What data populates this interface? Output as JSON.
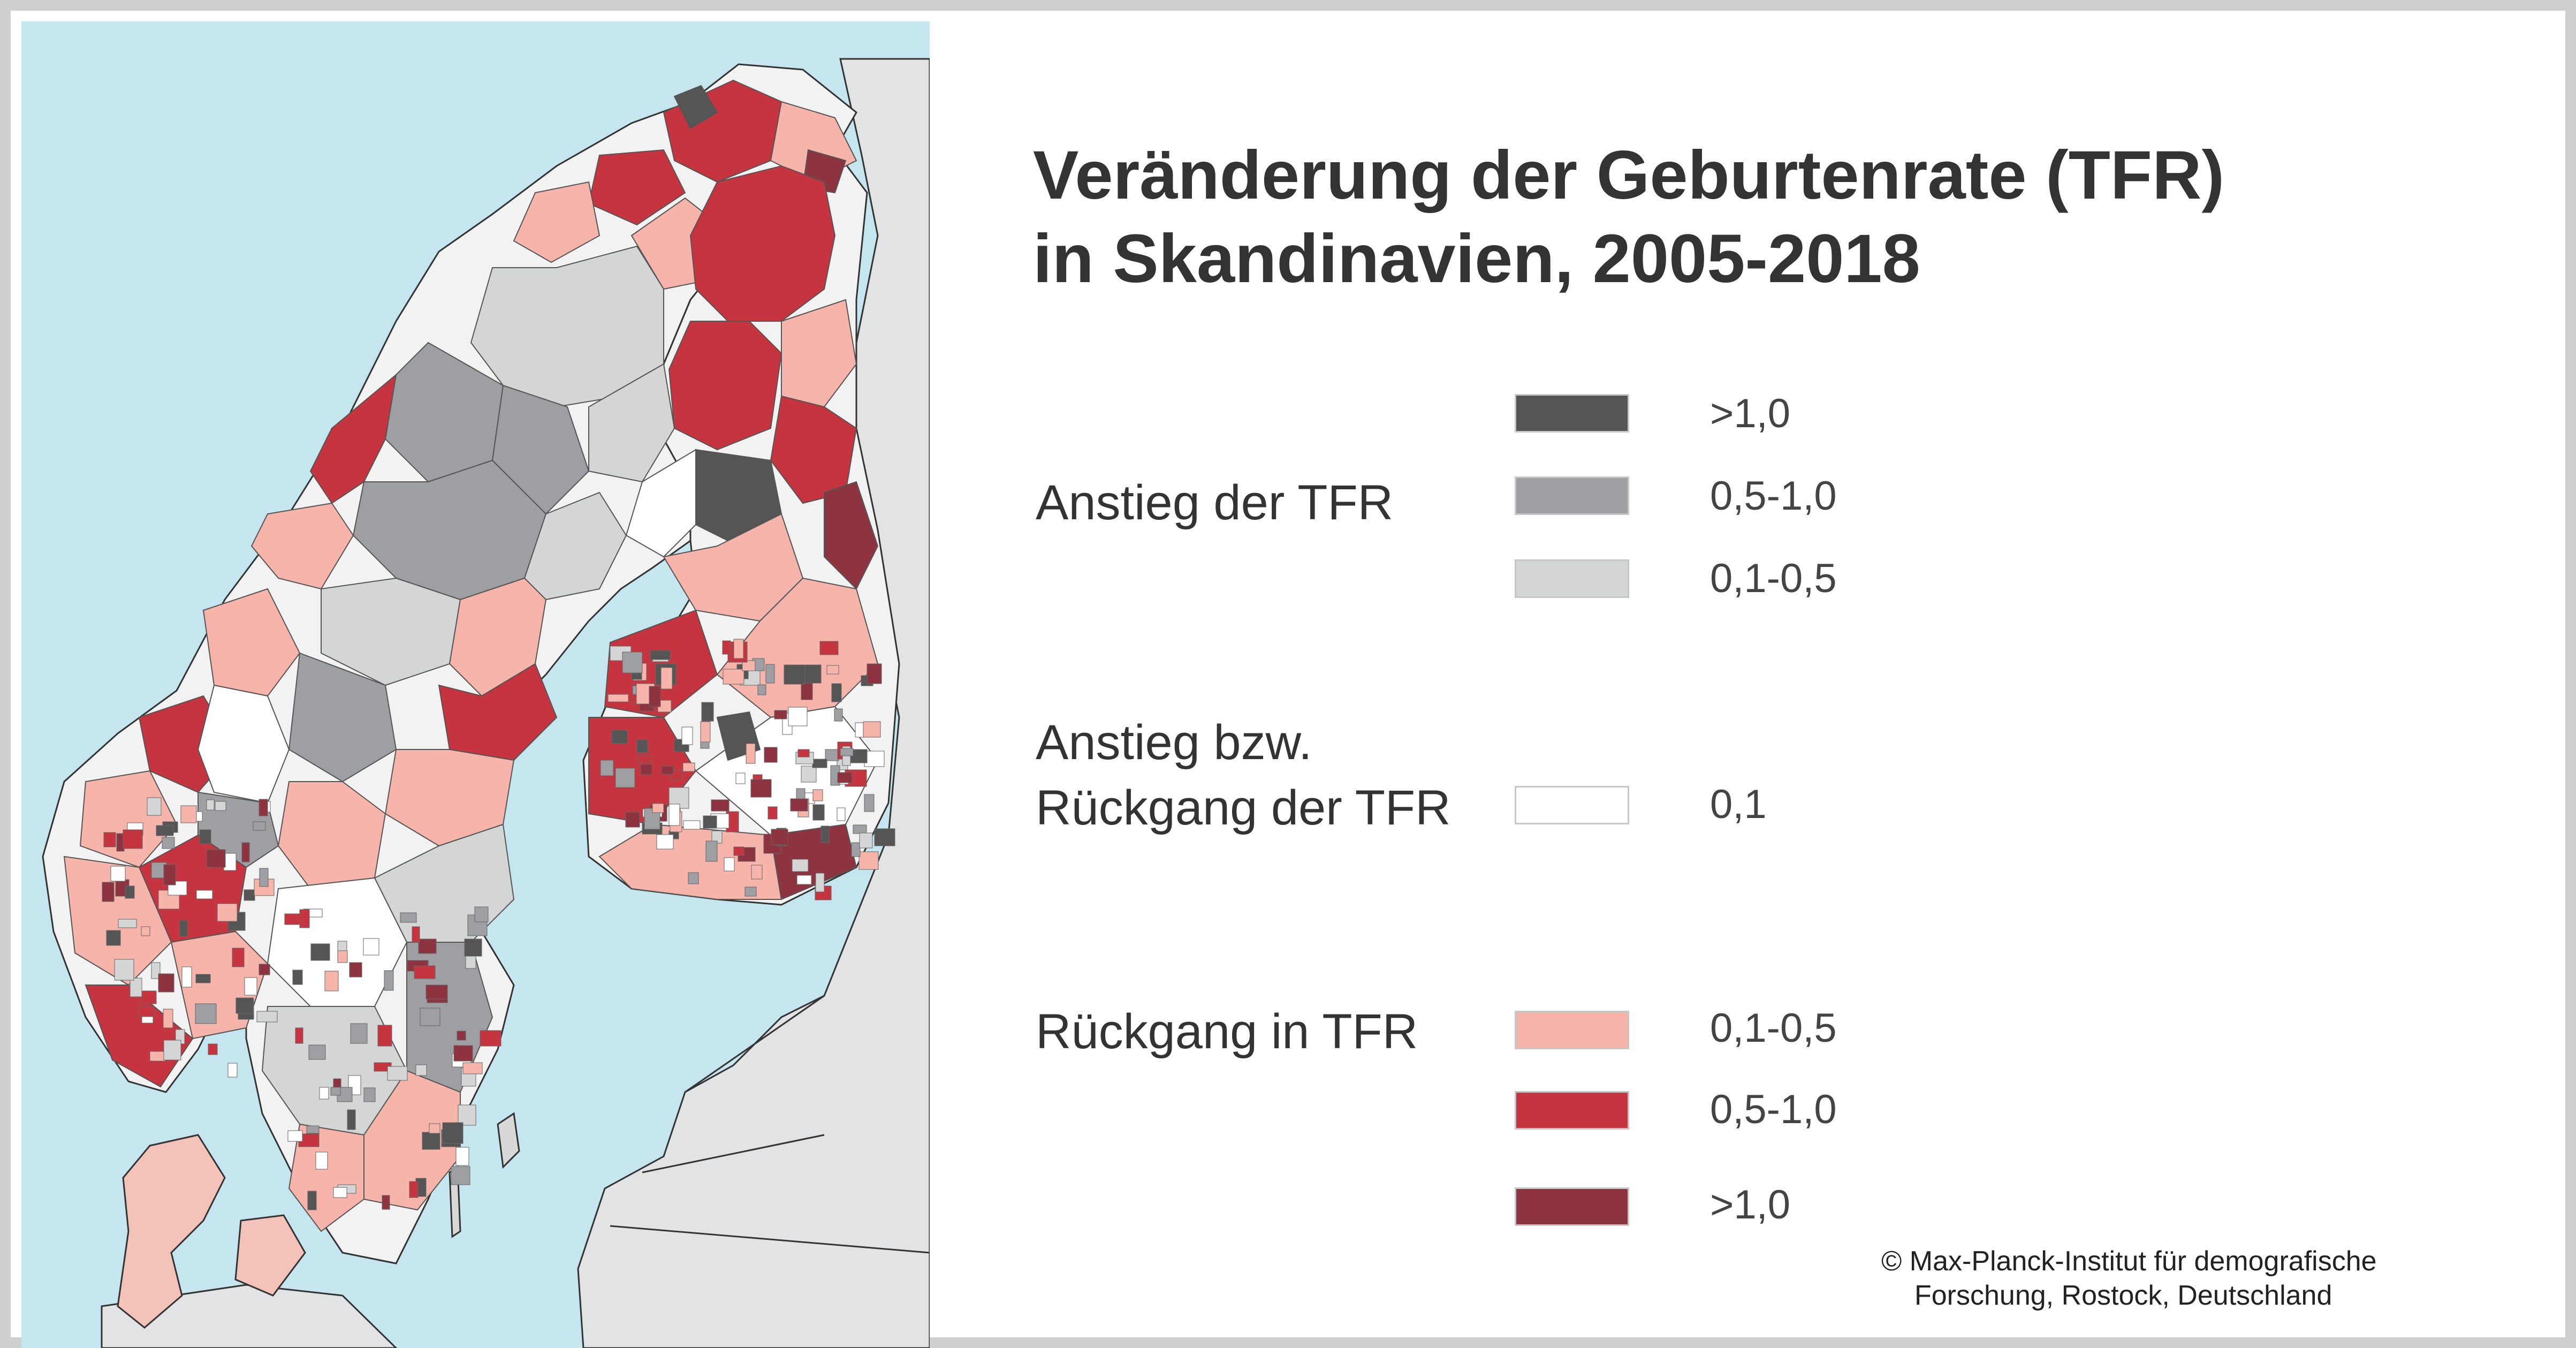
{
  "title": {
    "line1": "Veränderung der Geburtenrate (TFR)",
    "line2": "in Skandinavien, 2005-2018"
  },
  "legend": {
    "increase": {
      "label": "Anstieg der TFR",
      "classes": [
        {
          "value": ">1,0",
          "color": "#555555"
        },
        {
          "value": "0,5-1,0",
          "color": "#9d9fa3"
        },
        {
          "value": "0,1-0,5",
          "color": "#d4d5d5"
        }
      ]
    },
    "neutral": {
      "label_line1": "Anstieg bzw.",
      "label_line2": "Rückgang der TFR",
      "classes": [
        {
          "value": "0,1",
          "color": "#ffffff"
        }
      ]
    },
    "decrease": {
      "label": "Rückgang in TFR",
      "classes": [
        {
          "value": "0,1-0,5",
          "color": "#f6b4aa"
        },
        {
          "value": "0,5-1,0",
          "color": "#c6343f"
        },
        {
          "value": ">1,0",
          "color": "#8e3340"
        }
      ]
    }
  },
  "map": {
    "sea_color": "#c5e6ee",
    "outside_land_color": "#e2e3e4"
  },
  "copyright": {
    "line1": "© Max-Planck-Institut für demografische",
    "line2": "Forschung, Rostock, Deutschland"
  }
}
